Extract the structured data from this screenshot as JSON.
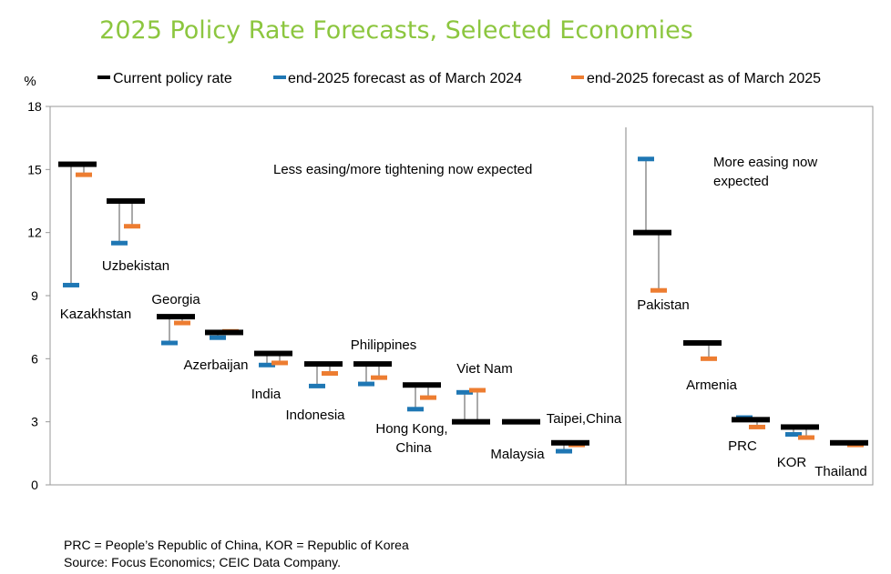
{
  "title": "2025 Policy Rate Forecasts, Selected Economies",
  "colors": {
    "title": "#8cc63f",
    "current": "#000000",
    "mar2024": "#1f77b4",
    "mar2025": "#ed7d31",
    "axis": "#999999"
  },
  "notes": {
    "abbreviations": "PRC = People’s Republic of China, KOR = Republic of Korea",
    "source": "Source: Focus Economics; CEIC Data Company."
  },
  "chart_data": {
    "type": "scatter",
    "ylabel": "%",
    "ylim": [
      0,
      18
    ],
    "yticks": [
      0,
      3,
      6,
      9,
      12,
      15,
      18
    ],
    "legend": [
      {
        "key": "current",
        "label": "Current policy rate"
      },
      {
        "key": "mar2024",
        "label": "end-2025 forecast as of March 2024"
      },
      {
        "key": "mar2025",
        "label": "end-2025 forecast as of March 2025"
      }
    ],
    "annotations": {
      "left": "Less easing/more tightening now expected",
      "right_line1": "More easing now",
      "right_line2": "expected"
    },
    "groups": [
      {
        "name": "Less easing/more tightening now expected",
        "economies": [
          {
            "label": "Kazakhstan",
            "current": 15.25,
            "mar2024": 9.5,
            "mar2025": 14.75
          },
          {
            "label": "Uzbekistan",
            "current": 13.5,
            "mar2024": 11.5,
            "mar2025": 12.3
          },
          {
            "label": "Georgia",
            "current": 8.0,
            "mar2024": 6.75,
            "mar2025": 7.7
          },
          {
            "label": "Azerbaijan",
            "current": 7.25,
            "mar2024": 7.0,
            "mar2025": 7.3
          },
          {
            "label": "India",
            "current": 6.25,
            "mar2024": 5.7,
            "mar2025": 5.8
          },
          {
            "label": "Indonesia",
            "current": 5.75,
            "mar2024": 4.7,
            "mar2025": 5.3
          },
          {
            "label": "Philippines",
            "current": 5.75,
            "mar2024": 4.8,
            "mar2025": 5.1
          },
          {
            "label": "Hong Kong, China",
            "current": 4.75,
            "mar2024": 3.6,
            "mar2025": 4.15
          },
          {
            "label": "Viet Nam",
            "current": 3.0,
            "mar2024": 4.4,
            "mar2025": 4.5
          },
          {
            "label": "Malaysia",
            "current": 3.0,
            "mar2024": 3.0,
            "mar2025": 3.0
          },
          {
            "label": "Taipei,China",
            "current": 2.0,
            "mar2024": 1.6,
            "mar2025": 1.9
          }
        ]
      },
      {
        "name": "More easing now expected",
        "economies": [
          {
            "label": "Pakistan",
            "current": 12.0,
            "mar2024": 15.5,
            "mar2025": 9.25
          },
          {
            "label": "Armenia",
            "current": 6.75,
            "mar2024": 6.75,
            "mar2025": 6.0
          },
          {
            "label": "PRC",
            "current": 3.1,
            "mar2024": 3.2,
            "mar2025": 2.75
          },
          {
            "label": "KOR",
            "current": 2.75,
            "mar2024": 2.4,
            "mar2025": 2.25
          },
          {
            "label": "Thailand",
            "current": 2.0,
            "mar2024": 2.0,
            "mar2025": 1.9
          }
        ]
      }
    ]
  }
}
